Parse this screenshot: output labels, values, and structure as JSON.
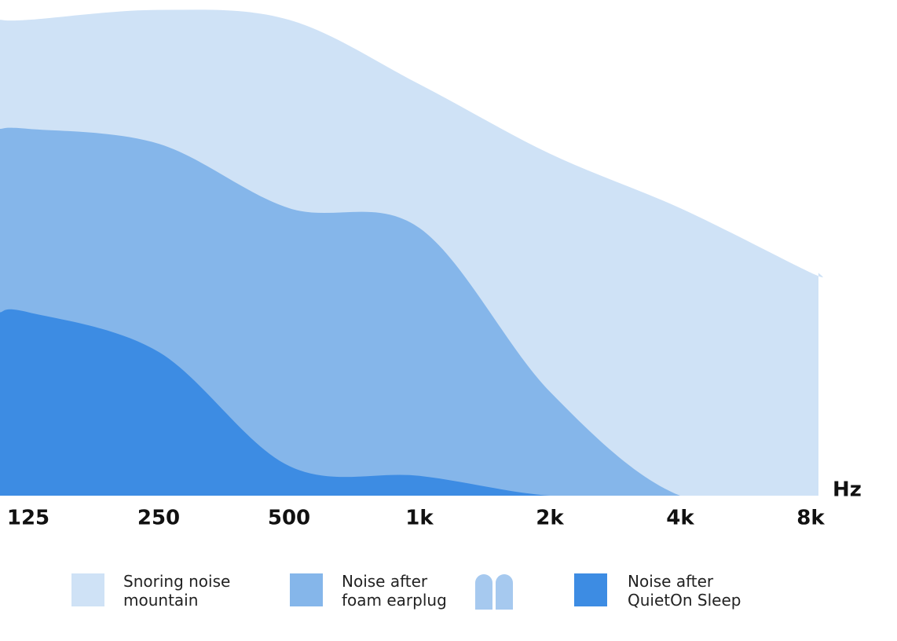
{
  "chart_data": {
    "type": "area",
    "categories": [
      "125",
      "250",
      "500",
      "1k",
      "2k",
      "4k",
      "8k"
    ],
    "x_label": "Hz",
    "ylim": [
      0,
      100
    ],
    "series": [
      {
        "name": "Snoring noise mountain",
        "color": "#cfe2f6",
        "values": [
          96,
          98,
          96,
          83,
          69,
          58,
          45
        ]
      },
      {
        "name": "Noise after foam earplug",
        "color": "#85b6ea",
        "values": [
          74,
          71,
          58,
          54,
          21,
          0,
          0
        ]
      },
      {
        "name": "Noise after QuietOn Sleep",
        "color": "#3d8ce3",
        "values": [
          37,
          29,
          6,
          4,
          0,
          0,
          0
        ]
      }
    ]
  }
}
